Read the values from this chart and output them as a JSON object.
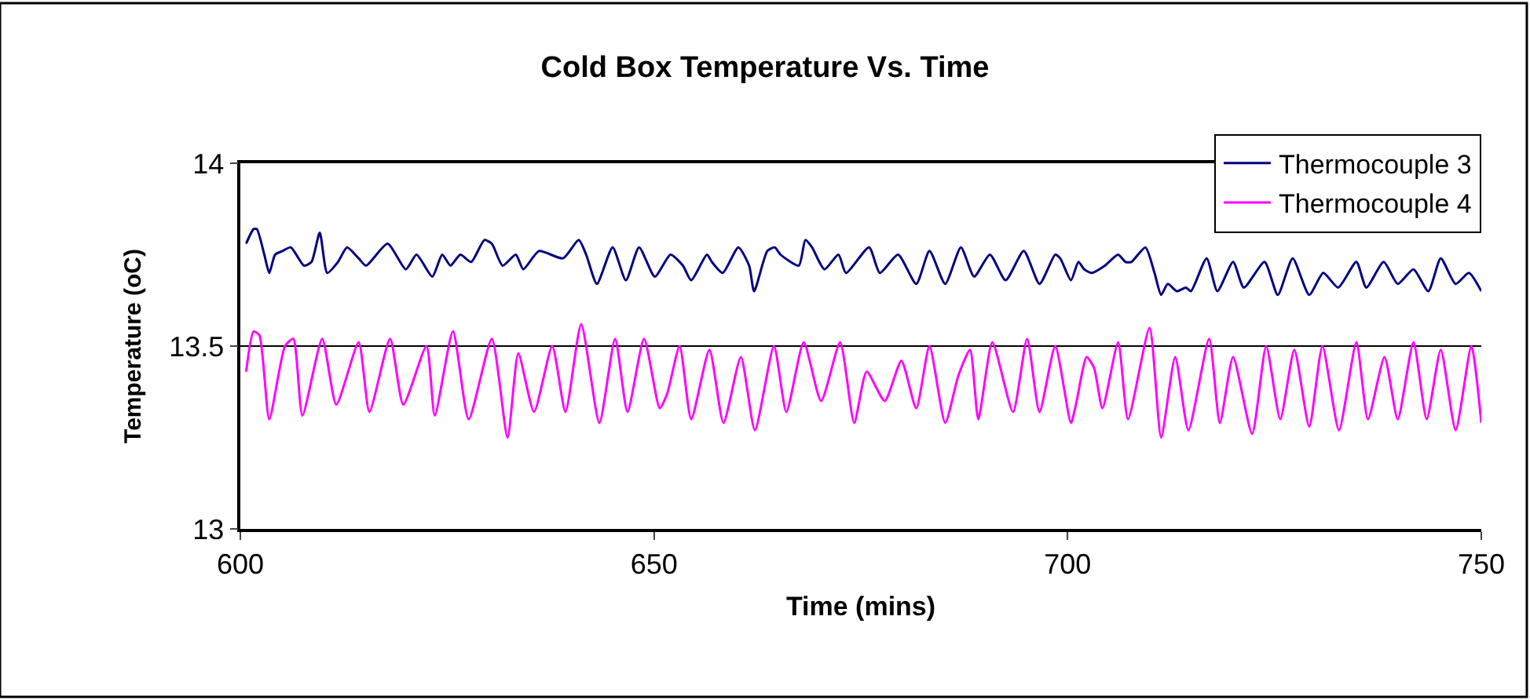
{
  "chart_data": {
    "type": "line",
    "title": "Cold Box Temperature Vs. Time",
    "xlabel": "Time (mins)",
    "ylabel": "Temperature (oC)",
    "xlim": [
      600,
      750
    ],
    "xticks": [
      600,
      650,
      700,
      750
    ],
    "ylim": [
      13,
      14
    ],
    "yticks": [
      13,
      13.5,
      14
    ],
    "grid": "y",
    "legend": "top right",
    "marker": "none",
    "line_style": "solid",
    "series": [
      {
        "name": "Thermocouple 3",
        "color": "#000080",
        "x": [
          600.7,
          601.6,
          602.0,
          602.9,
          603.5,
          604.2,
          605.1,
          606.1,
          607.7,
          608.6,
          609.6,
          610.5,
          611.8,
          612.9,
          614.3,
          615.2,
          617.8,
          620.0,
          621.3,
          623.2,
          624.4,
          625.4,
          626.6,
          627.9,
          629.5,
          630.4,
          631.7,
          633.3,
          634.2,
          636.1,
          639.0,
          640.9,
          641.8,
          643.1,
          645.0,
          646.6,
          648.2,
          650.1,
          652.0,
          653.5,
          654.5,
          656.4,
          657.0,
          658.3,
          660.2,
          661.5,
          662.1,
          663.7,
          664.6,
          665.3,
          667.5,
          668.3,
          669.1,
          670.6,
          672.3,
          673.2,
          676.0,
          677.3,
          679.5,
          681.7,
          683.3,
          685.2,
          687.1,
          688.7,
          690.6,
          692.5,
          694.7,
          696.6,
          698.5,
          699.1,
          700.4,
          701.3,
          702.0,
          702.9,
          704.5,
          706.1,
          707.0,
          707.7,
          709.4,
          710.5,
          711.3,
          712.1,
          713.2,
          714.3,
          714.9,
          716.8,
          718.1,
          720.0,
          721.3,
          723.8,
          725.4,
          727.2,
          729.2,
          730.9,
          732.7,
          734.9,
          736.1,
          738.2,
          739.9,
          741.8,
          743.6,
          745.1,
          746.9,
          748.5,
          750.0
        ],
        "values": [
          13.78,
          13.82,
          13.82,
          13.75,
          13.7,
          13.75,
          13.76,
          13.77,
          13.72,
          13.73,
          13.81,
          13.7,
          13.73,
          13.77,
          13.74,
          13.72,
          13.78,
          13.71,
          13.75,
          13.69,
          13.75,
          13.72,
          13.75,
          13.73,
          13.79,
          13.78,
          13.72,
          13.75,
          13.71,
          13.76,
          13.74,
          13.79,
          13.75,
          13.67,
          13.77,
          13.68,
          13.77,
          13.69,
          13.75,
          13.72,
          13.68,
          13.75,
          13.73,
          13.7,
          13.77,
          13.72,
          13.65,
          13.76,
          13.77,
          13.75,
          13.72,
          13.79,
          13.77,
          13.71,
          13.75,
          13.7,
          13.77,
          13.7,
          13.75,
          13.67,
          13.76,
          13.67,
          13.77,
          13.69,
          13.75,
          13.68,
          13.76,
          13.67,
          13.75,
          13.74,
          13.68,
          13.73,
          13.71,
          13.7,
          13.72,
          13.75,
          13.73,
          13.73,
          13.77,
          13.7,
          13.64,
          13.67,
          13.65,
          13.66,
          13.65,
          13.74,
          13.65,
          13.73,
          13.66,
          13.73,
          13.64,
          13.74,
          13.64,
          13.7,
          13.66,
          13.73,
          13.66,
          13.73,
          13.67,
          13.71,
          13.65,
          13.74,
          13.67,
          13.7,
          13.65
        ]
      },
      {
        "name": "Thermocouple 4",
        "color": "#ff00ff",
        "x": [
          600.7,
          601.6,
          602.3,
          603.5,
          605.4,
          606.4,
          607.5,
          609.9,
          611.6,
          614.3,
          615.6,
          618.1,
          619.7,
          622.5,
          623.5,
          625.7,
          627.6,
          630.4,
          632.3,
          633.6,
          635.5,
          637.7,
          639.3,
          641.2,
          643.4,
          645.3,
          646.8,
          648.8,
          650.7,
          651.6,
          653.1,
          654.5,
          656.7,
          658.4,
          660.5,
          662.2,
          664.5,
          666.0,
          668.1,
          670.2,
          672.5,
          674.2,
          675.7,
          677.9,
          679.9,
          681.7,
          683.3,
          685.2,
          686.8,
          688.2,
          689.2,
          690.9,
          693.4,
          695.1,
          696.6,
          698.5,
          700.4,
          701.0,
          702.3,
          703.2,
          704.2,
          706.1,
          707.3,
          709.9,
          711.3,
          713.0,
          714.6,
          717.1,
          718.4,
          720.0,
          722.3,
          724.0,
          725.7,
          727.4,
          729.2,
          730.8,
          732.8,
          734.9,
          736.3,
          738.3,
          739.9,
          741.8,
          743.4,
          745.1,
          746.9,
          748.8,
          750.0
        ],
        "values": [
          13.43,
          13.54,
          13.53,
          13.3,
          13.5,
          13.52,
          13.31,
          13.52,
          13.34,
          13.51,
          13.32,
          13.52,
          13.34,
          13.5,
          13.31,
          13.54,
          13.3,
          13.52,
          13.25,
          13.48,
          13.32,
          13.5,
          13.32,
          13.56,
          13.29,
          13.52,
          13.32,
          13.52,
          13.33,
          13.37,
          13.5,
          13.3,
          13.49,
          13.29,
          13.47,
          13.27,
          13.5,
          13.32,
          13.51,
          13.35,
          13.51,
          13.29,
          13.43,
          13.35,
          13.46,
          13.33,
          13.5,
          13.29,
          13.42,
          13.49,
          13.3,
          13.51,
          13.32,
          13.52,
          13.32,
          13.5,
          13.29,
          13.34,
          13.47,
          13.44,
          13.33,
          13.51,
          13.3,
          13.55,
          13.25,
          13.47,
          13.27,
          13.52,
          13.29,
          13.47,
          13.26,
          13.5,
          13.3,
          13.49,
          13.28,
          13.5,
          13.27,
          13.51,
          13.3,
          13.47,
          13.3,
          13.51,
          13.3,
          13.49,
          13.27,
          13.5,
          13.29
        ]
      }
    ]
  }
}
